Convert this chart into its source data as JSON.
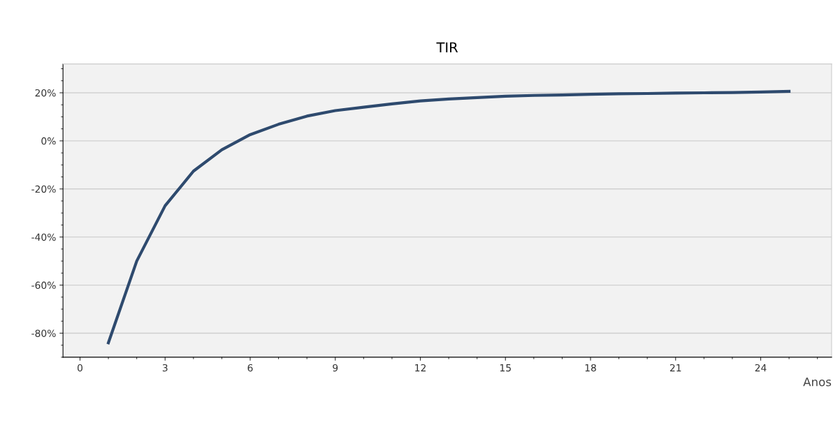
{
  "chart_data": {
    "type": "line",
    "title": "TIR",
    "xlabel": "Anos",
    "x": [
      1,
      2,
      3,
      4,
      5,
      6,
      7,
      8,
      9,
      10,
      11,
      12,
      13,
      14,
      15,
      16,
      17,
      18,
      19,
      20,
      21,
      22,
      23,
      24,
      25
    ],
    "series": [
      {
        "color": "#2e4a6e",
        "values": [
          -84,
          -50,
          -27,
          -12.6,
          -3.7,
          2.6,
          6.9,
          10.3,
          12.6,
          14,
          15.4,
          16.6,
          17.4,
          18,
          18.6,
          18.9,
          19.1,
          19.4,
          19.6,
          19.7,
          19.9,
          20,
          20.1,
          20.3,
          20.6
        ]
      }
    ],
    "xlim": [
      -0.6,
      26.5
    ],
    "xticks": [
      0,
      3,
      6,
      9,
      12,
      15,
      18,
      21,
      24
    ],
    "ylim": [
      -90,
      32
    ],
    "yticks": [
      {
        "value": -80,
        "label": "-80%"
      },
      {
        "value": -60,
        "label": "-60%"
      },
      {
        "value": -40,
        "label": "-40%"
      },
      {
        "value": -20,
        "label": "-20%"
      },
      {
        "value": 0,
        "label": "0%"
      },
      {
        "value": 20,
        "label": "20%"
      }
    ],
    "grid": "y",
    "marker": "none",
    "line_style": "solid",
    "legend": false
  }
}
